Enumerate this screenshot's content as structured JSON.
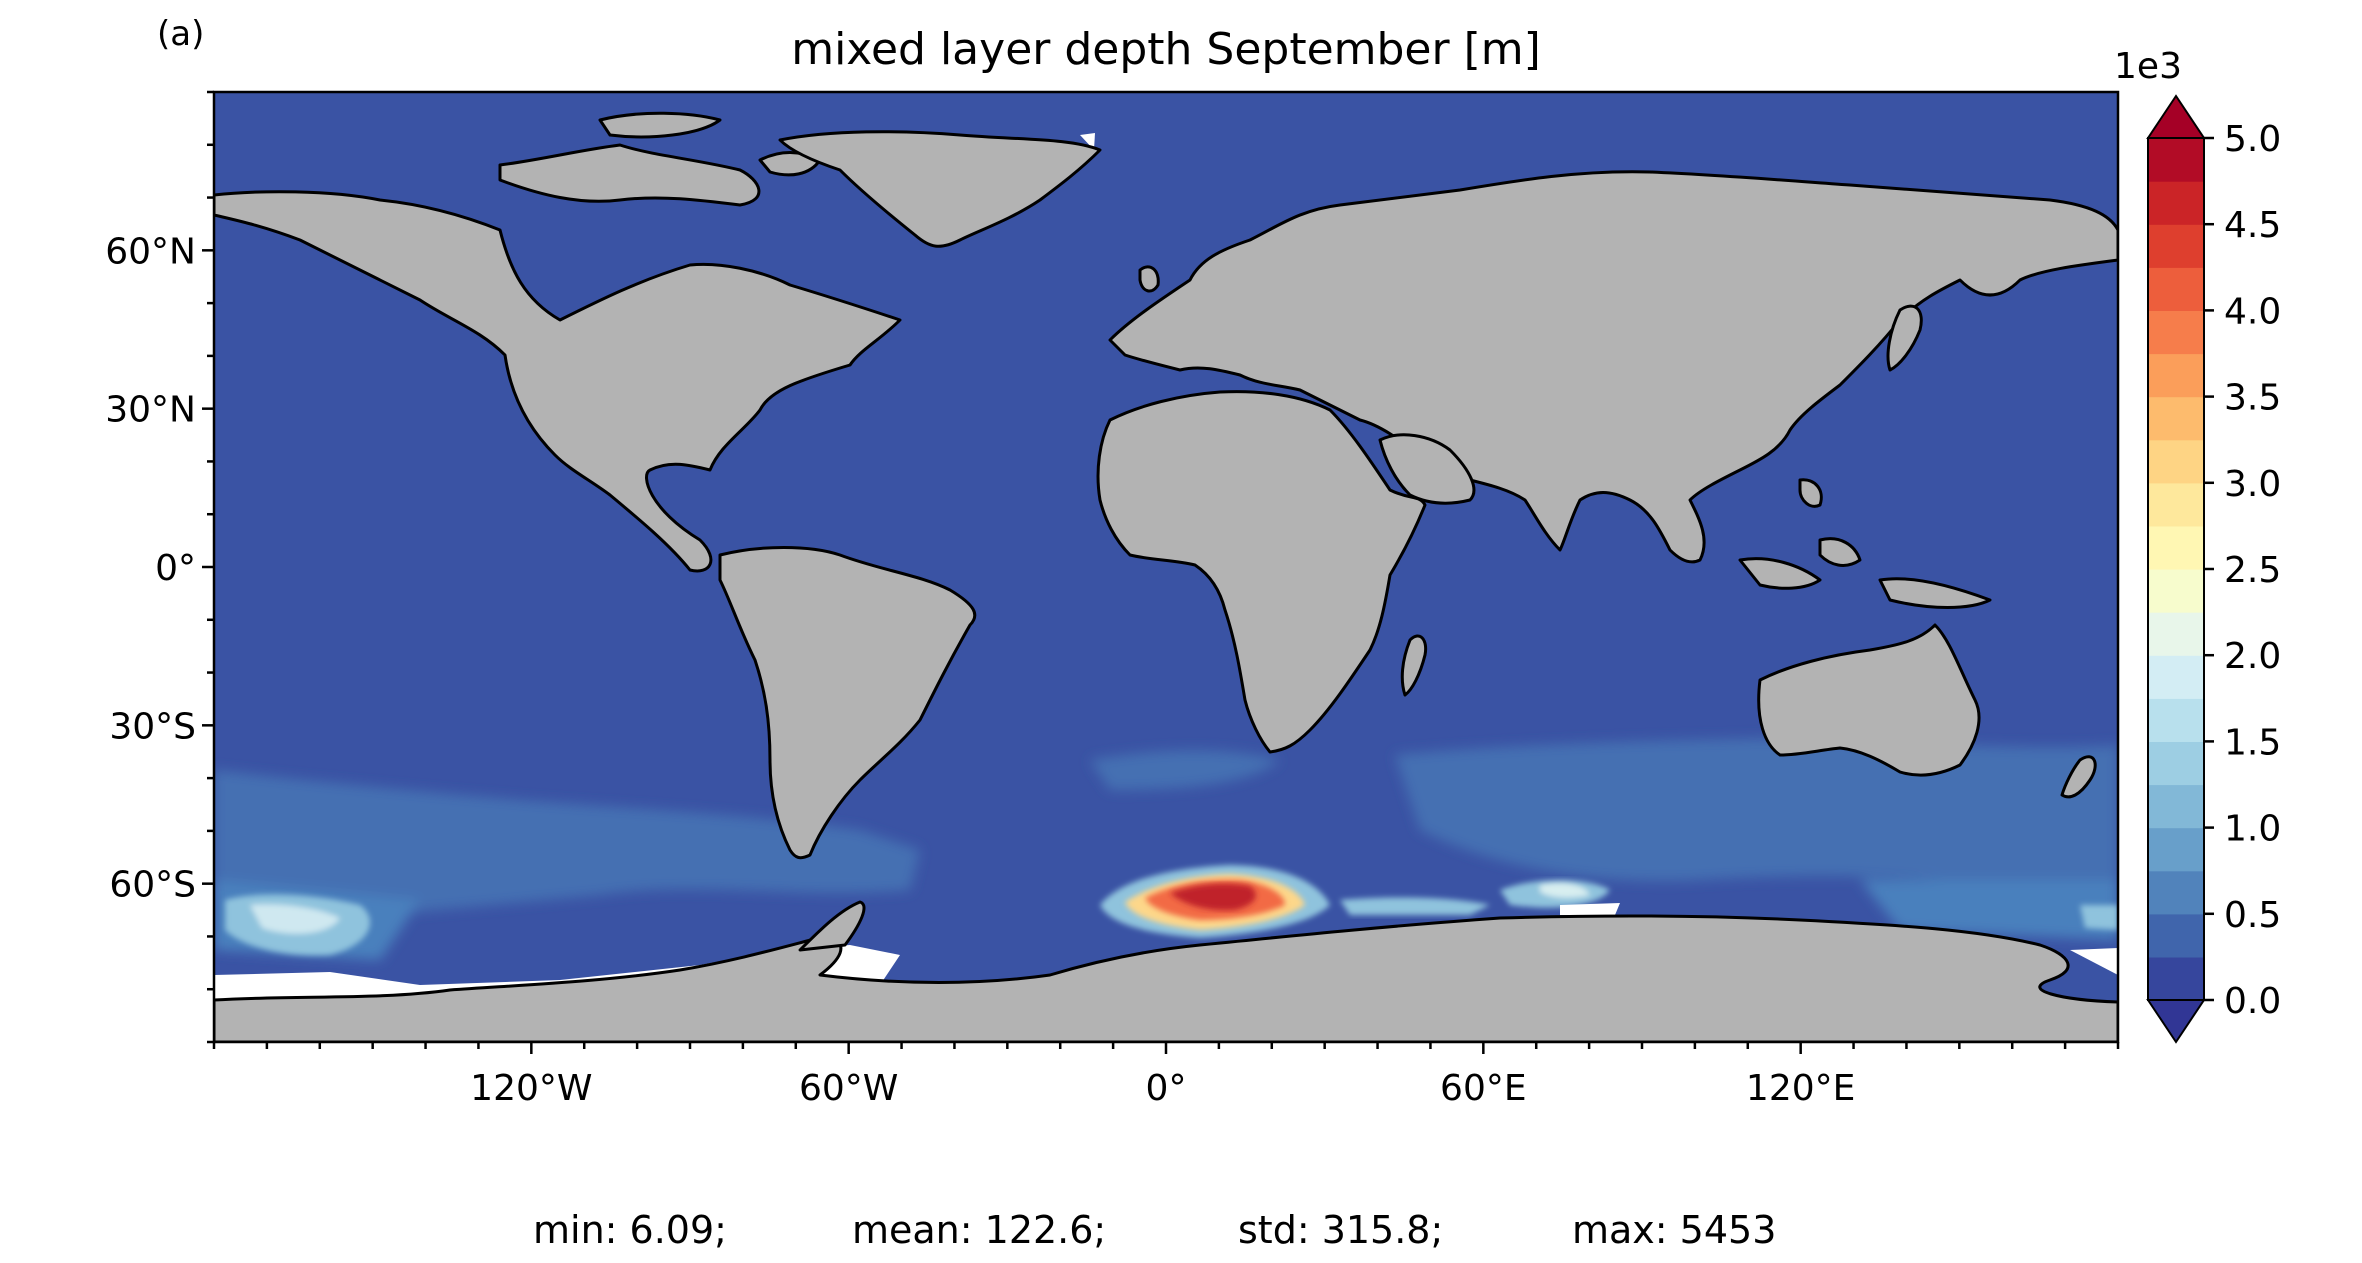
{
  "panel_label": "(a)",
  "chart_data": {
    "type": "heatmap",
    "title": "mixed layer depth September [m]",
    "projection": "plate carree world map",
    "x_ticks": [
      {
        "value": -120,
        "label": "120°W"
      },
      {
        "value": -60,
        "label": "60°W"
      },
      {
        "value": 0,
        "label": "0°"
      },
      {
        "value": 60,
        "label": "60°E"
      },
      {
        "value": 120,
        "label": "120°E"
      }
    ],
    "y_ticks": [
      {
        "value": 60,
        "label": "60°N"
      },
      {
        "value": 30,
        "label": "30°N"
      },
      {
        "value": 0,
        "label": "0°"
      },
      {
        "value": -30,
        "label": "30°S"
      },
      {
        "value": -60,
        "label": "60°S"
      }
    ],
    "xlim": [
      -180,
      180
    ],
    "ylim": [
      -90,
      90
    ],
    "colorbar": {
      "multiplier": "1e3",
      "range": [
        0,
        5.0
      ],
      "levels": 20,
      "extend": "both",
      "colormap": "RdYlBu_r",
      "ticks": [
        {
          "value": 0.0,
          "label": "0.0"
        },
        {
          "value": 0.5,
          "label": "0.5"
        },
        {
          "value": 1.0,
          "label": "1.0"
        },
        {
          "value": 1.5,
          "label": "1.5"
        },
        {
          "value": 2.0,
          "label": "2.0"
        },
        {
          "value": 2.5,
          "label": "2.5"
        },
        {
          "value": 3.0,
          "label": "3.0"
        },
        {
          "value": 3.5,
          "label": "3.5"
        },
        {
          "value": 4.0,
          "label": "4.0"
        },
        {
          "value": 4.5,
          "label": "4.5"
        },
        {
          "value": 5.0,
          "label": "5.0"
        }
      ]
    },
    "colors": {
      "ocean_base": "#3a53a4",
      "land": "#b3b3b3",
      "no_data": "#ffffff",
      "coastline": "#000000"
    },
    "features": [
      {
        "name": "Southern Ocean band",
        "lon": [
          -180,
          180
        ],
        "lat": [
          -65,
          -38
        ],
        "value_m": 350
      },
      {
        "name": "Pacific sector deep patches",
        "lon": [
          -180,
          -140
        ],
        "lat": [
          -72,
          -62
        ],
        "value_m": 1200
      },
      {
        "name": "Weddell Sea polynya",
        "lon": [
          -10,
          30
        ],
        "lat": [
          -68,
          -57
        ],
        "value_m": 5000
      },
      {
        "name": "Indian sector deep patch",
        "lon": [
          60,
          80
        ],
        "lat": [
          -66,
          -60
        ],
        "value_m": 1800
      }
    ],
    "stats": {
      "min": 6.09,
      "mean": 122.6,
      "std": 315.8,
      "max": 5453
    }
  },
  "stats_text": {
    "min": "min: 6.09;",
    "mean": "mean: 122.6;",
    "std": "std: 315.8;",
    "max": "max: 5453"
  }
}
